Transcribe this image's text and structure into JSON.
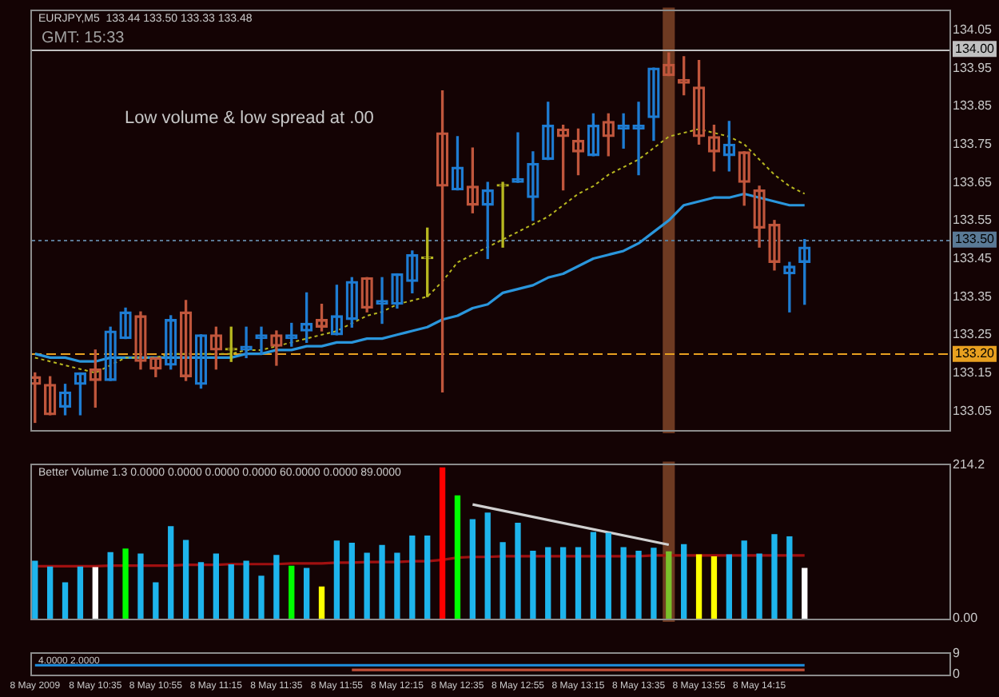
{
  "chart_data": [
    {
      "type": "candlestick",
      "title": "EURJPY,M5  133.44 133.50 133.33 133.48",
      "annotations": [
        "GMT: 15:33",
        "Low volume & low spread at .00"
      ],
      "tick_labels": "y",
      "x": [
        "2009-05-08T10:15",
        "2009-05-08T10:20",
        "2009-05-08T10:25",
        "2009-05-08T10:30",
        "2009-05-08T10:35",
        "2009-05-08T10:40",
        "2009-05-08T10:45",
        "2009-05-08T10:50",
        "2009-05-08T10:55",
        "2009-05-08T11:00",
        "2009-05-08T11:05",
        "2009-05-08T11:10",
        "2009-05-08T11:15",
        "2009-05-08T11:20",
        "2009-05-08T11:25",
        "2009-05-08T11:30",
        "2009-05-08T11:35",
        "2009-05-08T11:40",
        "2009-05-08T11:45",
        "2009-05-08T11:50",
        "2009-05-08T11:55",
        "2009-05-08T12:00",
        "2009-05-08T12:05",
        "2009-05-08T12:10",
        "2009-05-08T12:15",
        "2009-05-08T12:20",
        "2009-05-08T12:25",
        "2009-05-08T12:30",
        "2009-05-08T12:35",
        "2009-05-08T12:40",
        "2009-05-08T12:45",
        "2009-05-08T12:50",
        "2009-05-08T12:55",
        "2009-05-08T13:00",
        "2009-05-08T13:05",
        "2009-05-08T13:10",
        "2009-05-08T13:15",
        "2009-05-08T13:20",
        "2009-05-08T13:25",
        "2009-05-08T13:30",
        "2009-05-08T13:35",
        "2009-05-08T13:40",
        "2009-05-08T13:45",
        "2009-05-08T13:50",
        "2009-05-08T13:55",
        "2009-05-08T14:00",
        "2009-05-08T14:05",
        "2009-05-08T14:10",
        "2009-05-08T14:15",
        "2009-05-08T14:20",
        "2009-05-08T14:25",
        "2009-05-08T14:30"
      ],
      "ohlc": [
        [
          133.14,
          133.15,
          133.02,
          133.12
        ],
        [
          133.12,
          133.14,
          133.04,
          133.04
        ],
        [
          133.06,
          133.12,
          133.04,
          133.1
        ],
        [
          133.12,
          133.15,
          133.04,
          133.15
        ],
        [
          133.16,
          133.21,
          133.06,
          133.13
        ],
        [
          133.13,
          133.27,
          133.13,
          133.26
        ],
        [
          133.24,
          133.32,
          133.24,
          133.31
        ],
        [
          133.3,
          133.31,
          133.16,
          133.18
        ],
        [
          133.19,
          133.19,
          133.14,
          133.16
        ],
        [
          133.17,
          133.3,
          133.16,
          133.29
        ],
        [
          133.31,
          133.34,
          133.13,
          133.14
        ],
        [
          133.12,
          133.25,
          133.11,
          133.25
        ],
        [
          133.25,
          133.27,
          133.16,
          133.21
        ],
        [
          133.21,
          133.27,
          133.18,
          133.21
        ],
        [
          133.21,
          133.27,
          133.19,
          133.22
        ],
        [
          133.24,
          133.27,
          133.2,
          133.25
        ],
        [
          133.25,
          133.26,
          133.17,
          133.22
        ],
        [
          133.24,
          133.28,
          133.22,
          133.25
        ],
        [
          133.26,
          133.36,
          133.23,
          133.28
        ],
        [
          133.29,
          133.33,
          133.26,
          133.27
        ],
        [
          133.25,
          133.38,
          133.25,
          133.3
        ],
        [
          133.29,
          133.4,
          133.27,
          133.39
        ],
        [
          133.4,
          133.4,
          133.31,
          133.32
        ],
        [
          133.33,
          133.4,
          133.28,
          133.34
        ],
        [
          133.33,
          133.41,
          133.32,
          133.41
        ],
        [
          133.39,
          133.47,
          133.36,
          133.46
        ],
        [
          133.45,
          133.53,
          133.35,
          133.45
        ],
        [
          133.78,
          133.89,
          133.1,
          133.64
        ],
        [
          133.63,
          133.77,
          133.63,
          133.69
        ],
        [
          133.64,
          133.74,
          133.57,
          133.59
        ],
        [
          133.59,
          133.65,
          133.45,
          133.63
        ],
        [
          133.64,
          133.65,
          133.48,
          133.64
        ],
        [
          133.65,
          133.78,
          133.65,
          133.66
        ],
        [
          133.61,
          133.73,
          133.55,
          133.7
        ],
        [
          133.71,
          133.86,
          133.71,
          133.8
        ],
        [
          133.79,
          133.8,
          133.63,
          133.77
        ],
        [
          133.76,
          133.79,
          133.67,
          133.73
        ],
        [
          133.72,
          133.83,
          133.72,
          133.8
        ],
        [
          133.81,
          133.83,
          133.72,
          133.77
        ],
        [
          133.79,
          133.83,
          133.74,
          133.8
        ],
        [
          133.79,
          133.86,
          133.67,
          133.8
        ],
        [
          133.82,
          133.95,
          133.76,
          133.95
        ],
        [
          133.96,
          133.99,
          133.93,
          133.93
        ],
        [
          133.92,
          133.98,
          133.88,
          133.91
        ],
        [
          133.9,
          133.97,
          133.75,
          133.77
        ],
        [
          133.77,
          133.8,
          133.68,
          133.73
        ],
        [
          133.72,
          133.81,
          133.68,
          133.75
        ],
        [
          133.73,
          133.73,
          133.59,
          133.65
        ],
        [
          133.63,
          133.64,
          133.48,
          133.53
        ],
        [
          133.54,
          133.55,
          133.42,
          133.44
        ],
        [
          133.41,
          133.44,
          133.31,
          133.43
        ],
        [
          133.44,
          133.5,
          133.33,
          133.48
        ]
      ],
      "colors": [
        "#c0563c",
        "#c0563c",
        "#1e7cd2",
        "#1e7cd2",
        "#c0563c",
        "#1e7cd2",
        "#1e7cd2",
        "#c0563c",
        "#c0563c",
        "#1e7cd2",
        "#c0563c",
        "#1e7cd2",
        "#c0563c",
        "#b8b820",
        "#1e7cd2",
        "#1e7cd2",
        "#c0563c",
        "#1e7cd2",
        "#1e7cd2",
        "#c0563c",
        "#1e7cd2",
        "#1e7cd2",
        "#c0563c",
        "#1e7cd2",
        "#1e7cd2",
        "#1e7cd2",
        "#b8b820",
        "#c0563c",
        "#1e7cd2",
        "#c0563c",
        "#1e7cd2",
        "#b8b820",
        "#1e7cd2",
        "#1e7cd2",
        "#1e7cd2",
        "#c0563c",
        "#c0563c",
        "#1e7cd2",
        "#c0563c",
        "#1e7cd2",
        "#1e7cd2",
        "#1e7cd2",
        "#c0563c",
        "#c0563c",
        "#c0563c",
        "#c0563c",
        "#1e7cd2",
        "#c0563c",
        "#c0563c",
        "#c0563c",
        "#1e7cd2",
        "#1e7cd2"
      ],
      "series": [
        {
          "type": "line",
          "color": "#b8b820",
          "line_style": "dotted",
          "values": [
            133.19,
            133.18,
            133.17,
            133.16,
            133.15,
            133.17,
            133.19,
            133.19,
            133.19,
            133.2,
            133.2,
            133.2,
            133.2,
            133.2,
            133.21,
            133.21,
            133.22,
            133.23,
            133.24,
            133.25,
            133.26,
            133.28,
            133.3,
            133.31,
            133.33,
            133.34,
            133.35,
            133.39,
            133.44,
            133.46,
            133.48,
            133.5,
            133.52,
            133.54,
            133.56,
            133.59,
            133.62,
            133.64,
            133.67,
            133.69,
            133.71,
            133.74,
            133.77,
            133.78,
            133.79,
            133.78,
            133.77,
            133.75,
            133.71,
            133.67,
            133.64,
            133.62
          ]
        },
        {
          "type": "line",
          "color": "#2a96dc",
          "line_style": "solid",
          "values": [
            133.2,
            133.19,
            133.19,
            133.18,
            133.18,
            133.19,
            133.19,
            133.19,
            133.19,
            133.19,
            133.19,
            133.19,
            133.19,
            133.19,
            133.2,
            133.2,
            133.21,
            133.21,
            133.22,
            133.22,
            133.23,
            133.23,
            133.24,
            133.24,
            133.25,
            133.26,
            133.27,
            133.29,
            133.3,
            133.32,
            133.33,
            133.36,
            133.37,
            133.38,
            133.4,
            133.41,
            133.43,
            133.45,
            133.46,
            133.47,
            133.49,
            133.52,
            133.55,
            133.59,
            133.6,
            133.61,
            133.61,
            133.62,
            133.61,
            133.6,
            133.59,
            133.59
          ]
        }
      ],
      "xlim": [
        "2009-05-08T10:14",
        "2009-05-08T15:18"
      ],
      "ylim": [
        133.0,
        134.1
      ],
      "yticks": [
        133.05,
        133.15,
        133.25,
        133.35,
        133.45,
        133.55,
        133.65,
        133.75,
        133.85,
        133.95,
        134.05
      ],
      "ref_lines": [
        {
          "axis": "y",
          "value": 134.0,
          "label": "134.00",
          "color": "#c0c0c0",
          "line_style": "solid"
        },
        {
          "axis": "y",
          "value": 133.5,
          "label": "133.50",
          "color": "#5a7a96",
          "line_style": "dotted"
        },
        {
          "axis": "y",
          "value": 133.2,
          "label": "133.20",
          "color": "#e8a020",
          "line_style": "dashed"
        }
      ],
      "bands": [
        {
          "axis": "x",
          "from": "2009-05-08T13:43",
          "to": "2009-05-08T13:47",
          "color": "#6e3a22"
        }
      ]
    },
    {
      "type": "bar",
      "title": "Better Volume 1.3 0.0000 0.0000 0.0000 0.0000 60.0000 0.0000 89.0000",
      "tick_labels": "y",
      "x": [
        "2009-05-08T10:15",
        "2009-05-08T10:20",
        "2009-05-08T10:25",
        "2009-05-08T10:30",
        "2009-05-08T10:35",
        "2009-05-08T10:40",
        "2009-05-08T10:45",
        "2009-05-08T10:50",
        "2009-05-08T10:55",
        "2009-05-08T11:00",
        "2009-05-08T11:05",
        "2009-05-08T11:10",
        "2009-05-08T11:15",
        "2009-05-08T11:20",
        "2009-05-08T11:25",
        "2009-05-08T11:30",
        "2009-05-08T11:35",
        "2009-05-08T11:40",
        "2009-05-08T11:45",
        "2009-05-08T11:50",
        "2009-05-08T11:55",
        "2009-05-08T12:00",
        "2009-05-08T12:05",
        "2009-05-08T12:10",
        "2009-05-08T12:15",
        "2009-05-08T12:20",
        "2009-05-08T12:25",
        "2009-05-08T12:30",
        "2009-05-08T12:35",
        "2009-05-08T12:40",
        "2009-05-08T12:45",
        "2009-05-08T12:50",
        "2009-05-08T12:55",
        "2009-05-08T13:00",
        "2009-05-08T13:05",
        "2009-05-08T13:10",
        "2009-05-08T13:15",
        "2009-05-08T13:20",
        "2009-05-08T13:25",
        "2009-05-08T13:30",
        "2009-05-08T13:35",
        "2009-05-08T13:40",
        "2009-05-08T13:45",
        "2009-05-08T13:50",
        "2009-05-08T13:55",
        "2009-05-08T14:00",
        "2009-05-08T14:05",
        "2009-05-08T14:10",
        "2009-05-08T14:15",
        "2009-05-08T14:20",
        "2009-05-08T14:25",
        "2009-05-08T14:30"
      ],
      "series": [
        {
          "colors": [
            "#1eb4ec",
            "#1eb4ec",
            "#1eb4ec",
            "#1eb4ec",
            "#ffffff",
            "#1eb4ec",
            "#00ff00",
            "#1eb4ec",
            "#1eb4ec",
            "#1eb4ec",
            "#1eb4ec",
            "#1eb4ec",
            "#1eb4ec",
            "#1eb4ec",
            "#1eb4ec",
            "#1eb4ec",
            "#1eb4ec",
            "#00ff00",
            "#1eb4ec",
            "#ffff00",
            "#1eb4ec",
            "#1eb4ec",
            "#1eb4ec",
            "#1eb4ec",
            "#1eb4ec",
            "#1eb4ec",
            "#1eb4ec",
            "#ff0000",
            "#00ff00",
            "#1eb4ec",
            "#1eb4ec",
            "#1eb4ec",
            "#1eb4ec",
            "#1eb4ec",
            "#1eb4ec",
            "#1eb4ec",
            "#1eb4ec",
            "#1eb4ec",
            "#1eb4ec",
            "#1eb4ec",
            "#1eb4ec",
            "#1eb4ec",
            "#7ac02a",
            "#1eb4ec",
            "#ffff00",
            "#ffff00",
            "#1eb4ec",
            "#1eb4ec",
            "#1eb4ec",
            "#1eb4ec",
            "#1eb4ec",
            "#ffffff"
          ],
          "values": [
            80,
            72,
            50,
            72,
            71,
            92,
            97,
            90,
            50,
            128,
            109,
            78,
            90,
            75,
            80,
            59,
            88,
            73,
            70,
            44,
            108,
            105,
            91,
            102,
            91,
            115,
            115,
            210,
            171,
            138,
            147,
            106,
            133,
            94,
            99,
            99,
            99,
            120,
            119,
            99,
            94,
            98,
            93,
            103,
            89,
            86,
            89,
            108,
            90,
            117,
            114,
            70
          ]
        },
        {
          "type": "line",
          "color": "#a01010",
          "values": [
            73,
            73,
            73,
            73,
            73,
            74,
            74,
            74,
            74,
            74,
            75,
            75,
            75,
            76,
            76,
            76,
            76,
            77,
            77,
            77,
            78,
            78,
            79,
            79,
            79,
            80,
            80,
            82,
            85,
            86,
            86,
            87,
            87,
            87,
            87,
            87,
            87,
            87,
            87,
            87,
            87,
            88,
            88,
            88,
            88,
            88,
            88,
            88,
            88,
            88,
            88,
            88
          ]
        },
        {
          "type": "line",
          "color": "#d0d0d0",
          "x": [
            "2009-05-08T12:40",
            "2009-05-08T13:45"
          ],
          "values": [
            159,
            103
          ]
        }
      ],
      "xlim": [
        "2009-05-08T10:14",
        "2009-05-08T15:18"
      ],
      "ylim": [
        0,
        214.2
      ],
      "yticks": [
        {
          "value": 0,
          "label": "0.00"
        },
        214.2
      ],
      "bands": [
        {
          "axis": "x",
          "from": "2009-05-08T13:43",
          "to": "2009-05-08T13:47",
          "color": "#6e3a22"
        }
      ]
    },
    {
      "type": "line",
      "title": "4.0000 2.0000",
      "x": [
        "2009-05-08T10:15",
        "2009-05-08T10:20",
        "2009-05-08T10:25",
        "2009-05-08T10:30",
        "2009-05-08T10:35",
        "2009-05-08T10:40",
        "2009-05-08T10:45",
        "2009-05-08T10:50",
        "2009-05-08T10:55",
        "2009-05-08T11:00",
        "2009-05-08T11:05",
        "2009-05-08T11:10",
        "2009-05-08T11:15",
        "2009-05-08T11:20",
        "2009-05-08T11:25",
        "2009-05-08T11:30",
        "2009-05-08T11:35",
        "2009-05-08T11:40",
        "2009-05-08T11:45",
        "2009-05-08T11:50",
        "2009-05-08T11:55",
        "2009-05-08T12:00",
        "2009-05-08T12:05",
        "2009-05-08T12:10",
        "2009-05-08T12:15",
        "2009-05-08T12:20",
        "2009-05-08T12:25",
        "2009-05-08T12:30",
        "2009-05-08T12:35",
        "2009-05-08T12:40",
        "2009-05-08T12:45",
        "2009-05-08T12:50",
        "2009-05-08T12:55",
        "2009-05-08T13:00",
        "2009-05-08T13:05",
        "2009-05-08T13:10",
        "2009-05-08T13:15",
        "2009-05-08T13:20",
        "2009-05-08T13:25",
        "2009-05-08T13:30",
        "2009-05-08T13:35",
        "2009-05-08T13:40",
        "2009-05-08T13:45",
        "2009-05-08T13:50",
        "2009-05-08T13:55",
        "2009-05-08T14:00",
        "2009-05-08T14:05",
        "2009-05-08T14:10",
        "2009-05-08T14:15",
        "2009-05-08T14:20",
        "2009-05-08T14:25",
        "2009-05-08T14:30"
      ],
      "series": [
        {
          "color": "#1e90e0",
          "values": [
            4,
            4,
            4,
            4,
            4,
            4,
            4,
            4,
            4,
            4,
            4,
            4,
            4,
            4,
            4,
            4,
            4,
            4,
            4,
            4,
            4,
            4,
            4,
            4,
            4,
            4,
            4,
            4,
            4,
            4,
            4,
            4,
            4,
            4,
            4,
            4,
            4,
            4,
            4,
            4,
            4,
            4,
            4,
            4,
            4,
            4,
            4,
            4,
            4,
            4,
            4,
            4
          ]
        },
        {
          "color": "#c0503a",
          "values": [
            null,
            null,
            null,
            null,
            null,
            null,
            null,
            null,
            null,
            null,
            null,
            null,
            null,
            null,
            null,
            null,
            null,
            null,
            null,
            null,
            null,
            2,
            2,
            2,
            2,
            2,
            2,
            2,
            2,
            2,
            2,
            2,
            2,
            2,
            2,
            2,
            2,
            2,
            2,
            2,
            2,
            2,
            2,
            2,
            2,
            2,
            2,
            2,
            2,
            2,
            2,
            2
          ]
        }
      ],
      "xlim": [
        "2009-05-08T10:14",
        "2009-05-08T15:18"
      ],
      "ylim": [
        0,
        9
      ],
      "yticks": [
        0,
        9
      ],
      "xticks": [
        {
          "value": "2009-05-08T10:15",
          "label": "8 May 2009"
        },
        {
          "value": "2009-05-08T10:35",
          "label": "8 May 10:35"
        },
        {
          "value": "2009-05-08T10:55",
          "label": "8 May 10:55"
        },
        {
          "value": "2009-05-08T11:15",
          "label": "8 May 11:15"
        },
        {
          "value": "2009-05-08T11:35",
          "label": "8 May 11:35"
        },
        {
          "value": "2009-05-08T11:55",
          "label": "8 May 11:55"
        },
        {
          "value": "2009-05-08T12:15",
          "label": "8 May 12:15"
        },
        {
          "value": "2009-05-08T12:35",
          "label": "8 May 12:35"
        },
        {
          "value": "2009-05-08T12:55",
          "label": "8 May 12:55"
        },
        {
          "value": "2009-05-08T13:15",
          "label": "8 May 13:15"
        },
        {
          "value": "2009-05-08T13:35",
          "label": "8 May 13:35"
        },
        {
          "value": "2009-05-08T13:55",
          "label": "8 May 13:55"
        },
        {
          "value": "2009-05-08T14:15",
          "label": "8 May 14:15"
        }
      ]
    }
  ]
}
